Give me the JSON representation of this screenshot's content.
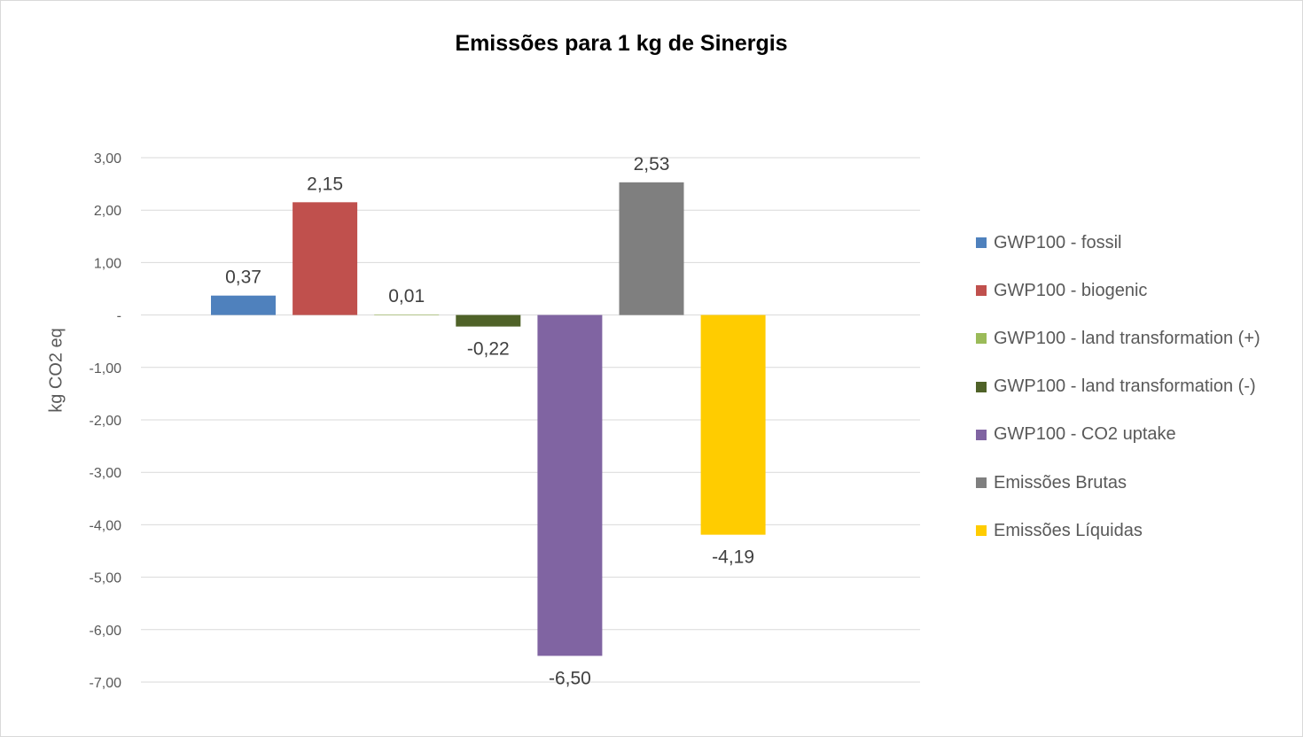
{
  "chart_data": {
    "type": "bar",
    "title": "Emissões para 1 kg de Sinergis",
    "xlabel": "",
    "ylabel": "kg CO2 eq",
    "ylim": [
      -7,
      3
    ],
    "yticks": [
      3,
      2,
      1,
      0,
      -1,
      -2,
      -3,
      -4,
      -5,
      -6,
      -7
    ],
    "ytick_labels": [
      "3,00",
      "2,00",
      "1,00",
      "-",
      "-1,00",
      "-2,00",
      "-3,00",
      "-4,00",
      "-5,00",
      "-6,00",
      "-7,00"
    ],
    "grid": true,
    "legend_position": "right",
    "series": [
      {
        "name": "GWP100 - fossil",
        "value": 0.37,
        "label": "0,37",
        "color": "#4F81BD"
      },
      {
        "name": "GWP100 - biogenic",
        "value": 2.15,
        "label": "2,15",
        "color": "#C0504D"
      },
      {
        "name": "GWP100 - land transformation (+)",
        "value": 0.01,
        "label": "0,01",
        "color": "#9BBB59"
      },
      {
        "name": "GWP100 - land transformation (-)",
        "value": -0.22,
        "label": "-0,22",
        "color": "#4F6228"
      },
      {
        "name": "GWP100 - CO2 uptake",
        "value": -6.5,
        "label": "-6,50",
        "color": "#8064A2"
      },
      {
        "name": "Emissões Brutas",
        "value": 2.53,
        "label": "2,53",
        "color": "#7F7F7F"
      },
      {
        "name": "Emissões Líquidas",
        "value": -4.19,
        "label": "-4,19",
        "color": "#FFCC00"
      }
    ]
  }
}
